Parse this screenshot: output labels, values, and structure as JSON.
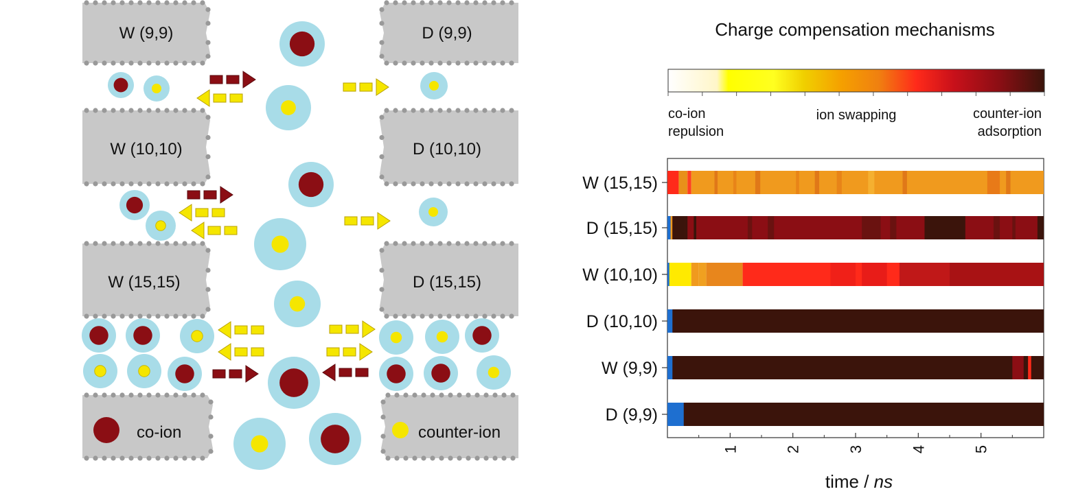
{
  "left_panel": {
    "slabs": {
      "w99": "W (9,9)",
      "d99": "D (9,9)",
      "w1010": "W (10,10)",
      "d1010": "D (10,10)",
      "w1515": "W (15,15)",
      "d1515": "D (15,15)"
    },
    "legend": {
      "coion": "co-ion",
      "counterion": "counter-ion"
    },
    "colors": {
      "slab": "#c8c8c8",
      "shell": "#a8dce8",
      "coion": "#8b0e14",
      "counterion": "#f5e600",
      "arrow_dark": "#8b0e14",
      "arrow_yellow": "#f5e600"
    }
  },
  "right_panel": {
    "title": "Charge compensation mechanisms",
    "colorbar": {
      "left_label": "co-ion\nrepulsion",
      "middle_label": "ion swapping",
      "right_label": "counter-ion\nadsorption",
      "left_label_l1": "co-ion",
      "left_label_l2": "repulsion",
      "right_label_l1": "counter-ion",
      "right_label_l2": "adsorption",
      "stops": [
        "#ffffff",
        "#ffff00",
        "#ffa500",
        "#ff2a1a",
        "#8b0e14",
        "#3b140b"
      ]
    },
    "rows": [
      "W (15,15)",
      "D (15,15)",
      "W (10,10)",
      "D (10,10)",
      "W (9,9)",
      "D (9,9)"
    ],
    "xaxis": {
      "label_main": "time / ",
      "label_unit": "ns",
      "ticks": [
        "1",
        "2",
        "3",
        "4",
        "5"
      ],
      "tick_values": [
        1,
        2,
        3,
        4,
        5
      ],
      "range": [
        0,
        6
      ]
    },
    "row_colors": {
      "blue_marker": "#1e6fd0",
      "dark": "#3b140b",
      "maroon": "#8b0e14",
      "red": "#ff2a1a",
      "orange": "#f0a020"
    }
  }
}
